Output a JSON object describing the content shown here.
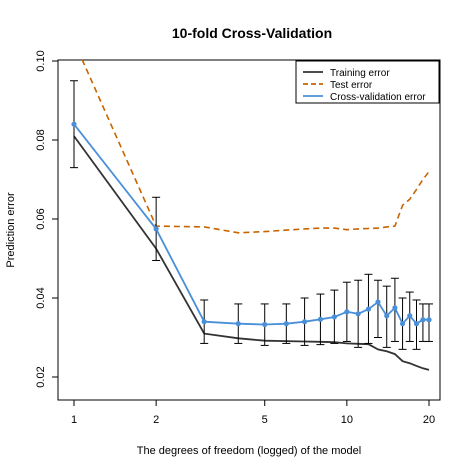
{
  "chart_data": {
    "type": "line",
    "title": "10-fold Cross-Validation",
    "xlabel": "The degrees of freedom (logged) of the model",
    "ylabel": "Prediction error",
    "x_scale": "log",
    "xlim": [
      1,
      20
    ],
    "ylim": [
      0.02,
      0.1
    ],
    "x_ticks": [
      1,
      2,
      5,
      10,
      20
    ],
    "x_tick_labels": [
      "1",
      "2",
      "5",
      "10",
      "20"
    ],
    "y_ticks": [
      0.02,
      0.04,
      0.06,
      0.08,
      0.1
    ],
    "y_tick_labels": [
      "0.02",
      "0.04",
      "0.06",
      "0.08",
      "0.10"
    ],
    "grid": false,
    "legend_position": "top-right",
    "x": [
      1,
      2,
      3,
      4,
      5,
      6,
      7,
      8,
      9,
      10,
      11,
      12,
      13,
      14,
      15,
      16,
      17,
      18,
      19,
      20
    ],
    "series": [
      {
        "name": "Training error",
        "style": "solid",
        "color": "#333333",
        "values": [
          0.081,
          0.0525,
          0.031,
          0.0298,
          0.0292,
          0.0291,
          0.029,
          0.0289,
          0.0288,
          0.0285,
          0.0284,
          0.0283,
          0.027,
          0.0265,
          0.0258,
          0.024,
          0.0235,
          0.0228,
          0.0222,
          0.0218
        ]
      },
      {
        "name": "Test error",
        "style": "dashed",
        "color": "#c86400",
        "values": [
          0.105,
          0.0582,
          0.058,
          0.0565,
          0.0568,
          0.0572,
          0.0575,
          0.0577,
          0.0577,
          0.0573,
          0.0575,
          0.0576,
          0.0577,
          0.058,
          0.0582,
          0.0635,
          0.065,
          0.0675,
          0.07,
          0.072
        ]
      },
      {
        "name": "Cross-validation error",
        "style": "solid-points",
        "color": "#4a90d9",
        "values": [
          0.084,
          0.0575,
          0.034,
          0.0335,
          0.0333,
          0.0335,
          0.034,
          0.0346,
          0.0352,
          0.0365,
          0.036,
          0.0372,
          0.039,
          0.0355,
          0.0375,
          0.0335,
          0.0355,
          0.0335,
          0.0345,
          0.0345
        ],
        "error_low": [
          0.073,
          0.0495,
          0.0285,
          0.0285,
          0.028,
          0.0285,
          0.028,
          0.0282,
          0.0285,
          0.029,
          0.0275,
          0.0285,
          0.03,
          0.0275,
          0.029,
          0.027,
          0.029,
          0.027,
          0.029,
          0.029
        ],
        "error_high": [
          0.095,
          0.0655,
          0.0395,
          0.0385,
          0.0385,
          0.0385,
          0.04,
          0.041,
          0.042,
          0.044,
          0.0445,
          0.046,
          0.0445,
          0.043,
          0.045,
          0.04,
          0.0415,
          0.0395,
          0.0385,
          0.0385
        ]
      }
    ]
  }
}
